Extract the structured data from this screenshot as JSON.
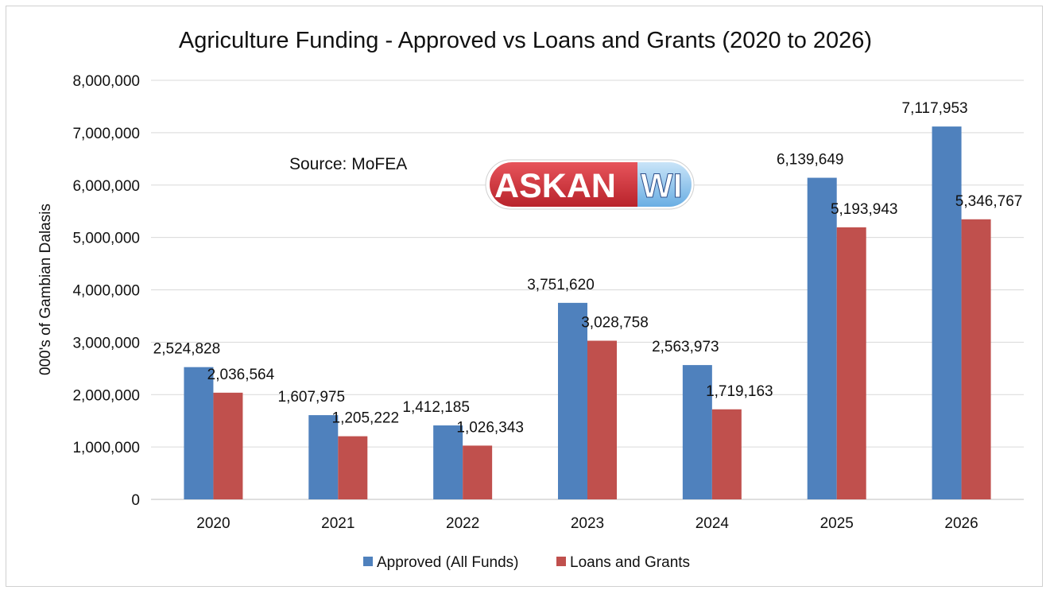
{
  "chart_data": {
    "type": "bar",
    "title": "Agriculture Funding - Approved vs Loans and Grants (2020 to 2026)",
    "xlabel": "",
    "ylabel": "000's of Gambian Dalasis",
    "categories": [
      "2020",
      "2021",
      "2022",
      "2023",
      "2024",
      "2025",
      "2026"
    ],
    "ylim": [
      0,
      8000000
    ],
    "yticks": [
      0,
      1000000,
      2000000,
      3000000,
      4000000,
      5000000,
      6000000,
      7000000,
      8000000
    ],
    "ytick_labels": [
      "0",
      "1,000,000",
      "2,000,000",
      "3,000,000",
      "4,000,000",
      "5,000,000",
      "6,000,000",
      "7,000,000",
      "8,000,000"
    ],
    "grid": true,
    "legend_position": "bottom",
    "series": [
      {
        "name": "Approved (All Funds)",
        "color": "#4f81bd",
        "values": [
          2524828,
          1607975,
          1412185,
          3751620,
          2563973,
          6139649,
          7117953
        ],
        "labels": [
          "2,524,828",
          "1,607,975",
          "1,412,185",
          "3,751,620",
          "2,563,973",
          "6,139,649",
          "7,117,953"
        ]
      },
      {
        "name": "Loans and Grants",
        "color": "#c0504d",
        "values": [
          2036564,
          1205222,
          1026343,
          3028758,
          1719163,
          5193943,
          5346767
        ],
        "labels": [
          "2,036,564",
          "1,205,222",
          "1,026,343",
          "3,028,758",
          "1,719,163",
          "5,193,943",
          "5,346,767"
        ]
      }
    ],
    "annotations": {
      "source": "Source: MoFEA"
    }
  },
  "watermark": {
    "part1": "ASKAN",
    "part2": "WI",
    "colors": {
      "red": "#d2383f",
      "blue": "#8fc3ea"
    }
  }
}
